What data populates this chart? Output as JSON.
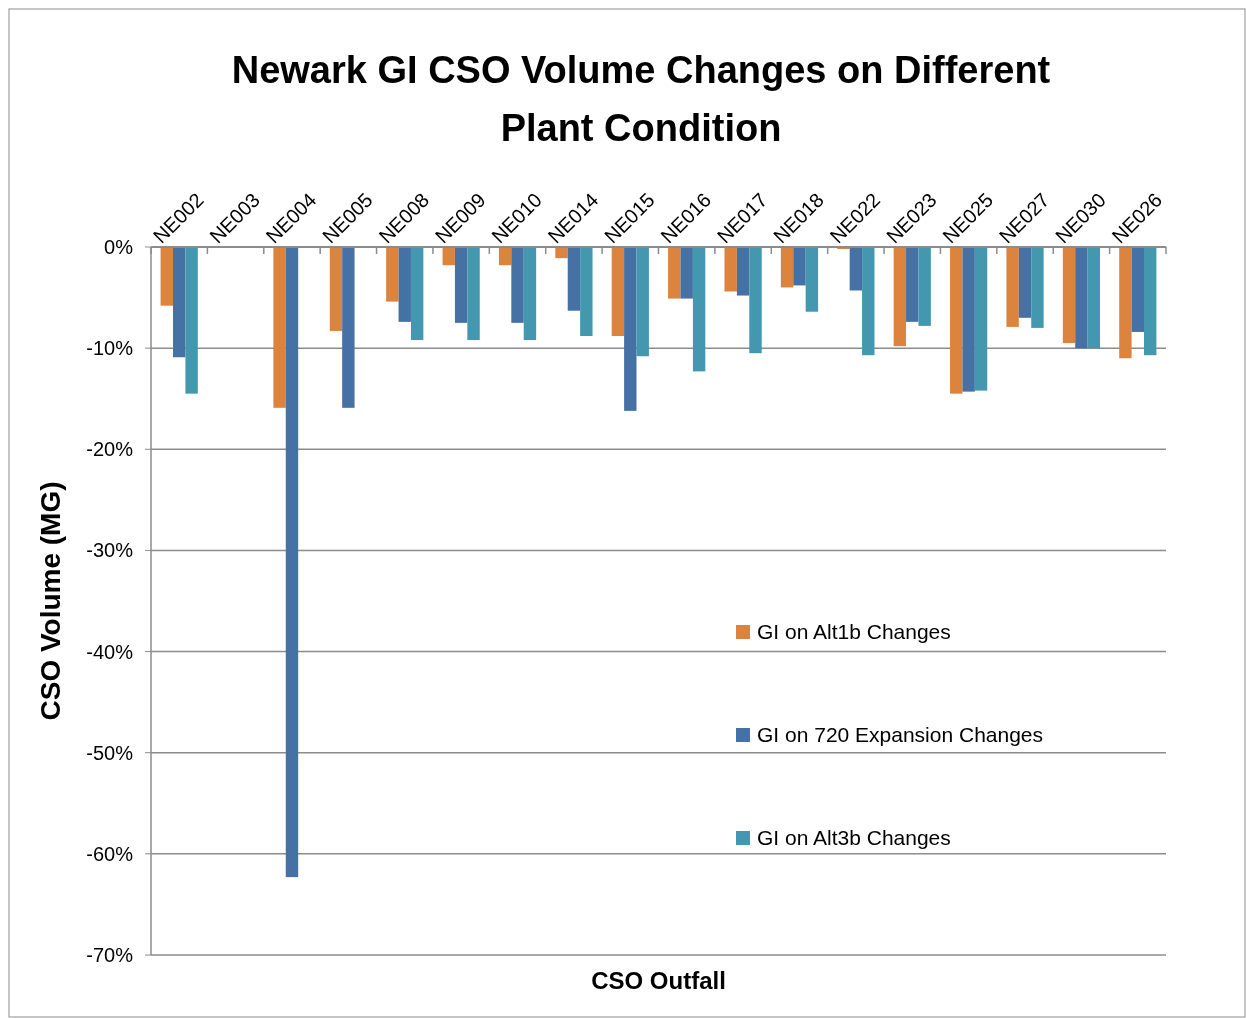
{
  "chart_data": {
    "type": "bar",
    "title": "Newark GI CSO Volume Changes on Different Plant Condition",
    "xlabel": "CSO Outfall",
    "ylabel": "CSO Volume (MG)",
    "categories": [
      "NE002",
      "NE003",
      "NE004",
      "NE005",
      "NE008",
      "NE009",
      "NE010",
      "NE014",
      "NE015",
      "NE016",
      "NE017",
      "NE018",
      "NE022",
      "NE023",
      "NE025",
      "NE027",
      "NE030",
      "NE026"
    ],
    "series": [
      {
        "name": "GI on Alt1b Changes",
        "color": "#dc843e",
        "values": [
          -5.8,
          null,
          -15.9,
          -8.3,
          -5.4,
          -1.8,
          -1.8,
          -1.1,
          -8.8,
          -5.1,
          -4.4,
          -4.0,
          -0.2,
          -9.8,
          -14.5,
          -7.9,
          -9.5,
          -11.0
        ]
      },
      {
        "name": "GI on 720 Expansion Changes",
        "color": "#4571a5",
        "values": [
          -10.9,
          null,
          -62.3,
          -15.9,
          -7.4,
          -7.5,
          -7.5,
          -6.3,
          -16.2,
          -5.1,
          -4.8,
          -3.8,
          -4.3,
          -7.4,
          -14.3,
          -7.0,
          -10.0,
          -8.4
        ]
      },
      {
        "name": "GI on Alt3b Changes",
        "color": "#4398b0",
        "values": [
          -14.5,
          null,
          null,
          null,
          -9.2,
          -9.2,
          -9.2,
          -8.8,
          -10.8,
          -12.3,
          -10.5,
          -6.4,
          -10.7,
          -7.8,
          -14.2,
          -8.0,
          -10.0,
          -10.7
        ]
      }
    ],
    "ylim": [
      -70,
      0
    ],
    "yticks": [
      {
        "value": 0,
        "label": "0%"
      },
      {
        "value": -10,
        "label": "-10%"
      },
      {
        "value": -20,
        "label": "-20%"
      },
      {
        "value": -30,
        "label": "-30%"
      },
      {
        "value": -40,
        "label": "-40%"
      },
      {
        "value": -50,
        "label": "-50%"
      },
      {
        "value": -60,
        "label": "-60%"
      },
      {
        "value": -70,
        "label": "-70%"
      }
    ],
    "grid": "y",
    "legend": "right"
  }
}
